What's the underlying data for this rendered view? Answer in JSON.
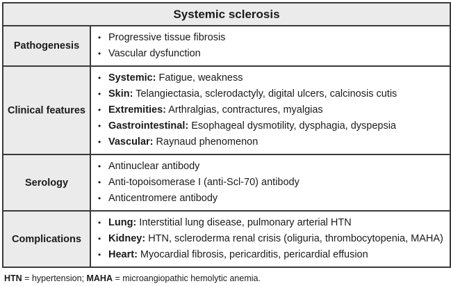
{
  "title": "Systemic sclerosis",
  "rows": [
    {
      "label": "Pathogenesis",
      "items": [
        {
          "term": "",
          "text": "Progressive tissue fibrosis"
        },
        {
          "term": "",
          "text": "Vascular dysfunction"
        }
      ]
    },
    {
      "label": "Clinical features",
      "items": [
        {
          "term": "Systemic:",
          "text": " Fatigue, weakness"
        },
        {
          "term": "Skin:",
          "text": " Telangiectasia, sclerodactyly, digital ulcers, calcinosis cutis"
        },
        {
          "term": "Extremities:",
          "text": " Arthralgias, contractures, myalgias"
        },
        {
          "term": "Gastrointestinal:",
          "text": " Esophageal dysmotility, dysphagia, dyspepsia"
        },
        {
          "term": "Vascular:",
          "text": " Raynaud phenomenon"
        }
      ]
    },
    {
      "label": "Serology",
      "items": [
        {
          "term": "",
          "text": "Antinuclear antibody"
        },
        {
          "term": "",
          "text": "Anti-topoisomerase I (anti-Scl-70) antibody"
        },
        {
          "term": "",
          "text": "Anticentromere antibody"
        }
      ]
    },
    {
      "label": "Complications",
      "items": [
        {
          "term": "Lung:",
          "text": " Interstitial lung disease, pulmonary arterial HTN"
        },
        {
          "term": "Kidney:",
          "text": " HTN, scleroderma renal crisis (oliguria, thrombocytopenia, MAHA)"
        },
        {
          "term": "Heart:",
          "text": " Myocardial fibrosis, pericarditis, pericardial effusion"
        }
      ]
    }
  ],
  "bullet": "•",
  "footnote": {
    "abbr1": "HTN",
    "def1": " = hypertension; ",
    "abbr2": "MAHA",
    "def2": " = microangiopathic hemolytic anemia."
  }
}
